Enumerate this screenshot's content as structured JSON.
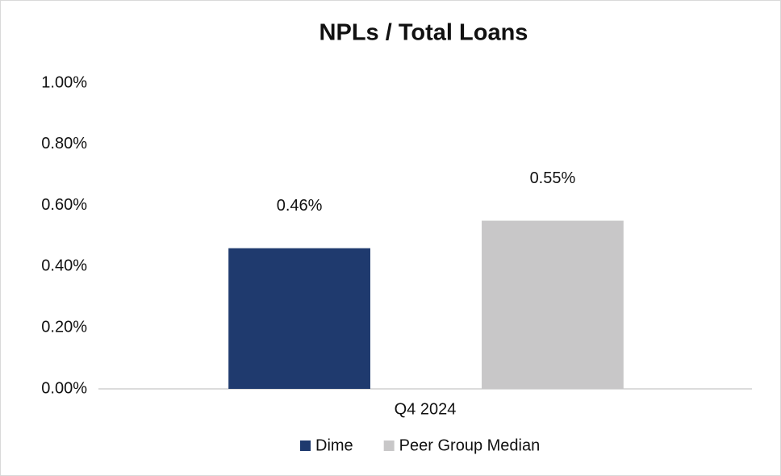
{
  "chart_data": {
    "type": "bar",
    "title": "NPLs / Total Loans",
    "categories": [
      "Q4 2024"
    ],
    "series": [
      {
        "name": "Dime",
        "color": "#1f3a6e",
        "values": [
          0.46
        ],
        "value_labels": [
          "0.46%"
        ]
      },
      {
        "name": "Peer Group Median",
        "color": "#c8c7c8",
        "values": [
          0.55
        ],
        "value_labels": [
          "0.55%"
        ]
      }
    ],
    "ylim": [
      0,
      1
    ],
    "yticks": [
      {
        "value": 0,
        "label": "0.00%"
      },
      {
        "value": 0.2,
        "label": "0.20%"
      },
      {
        "value": 0.4,
        "label": "0.40%"
      },
      {
        "value": 0.6,
        "label": "0.60%"
      },
      {
        "value": 0.8,
        "label": "0.80%"
      },
      {
        "value": 1,
        "label": "1.00%"
      }
    ],
    "legend": "bottom"
  }
}
